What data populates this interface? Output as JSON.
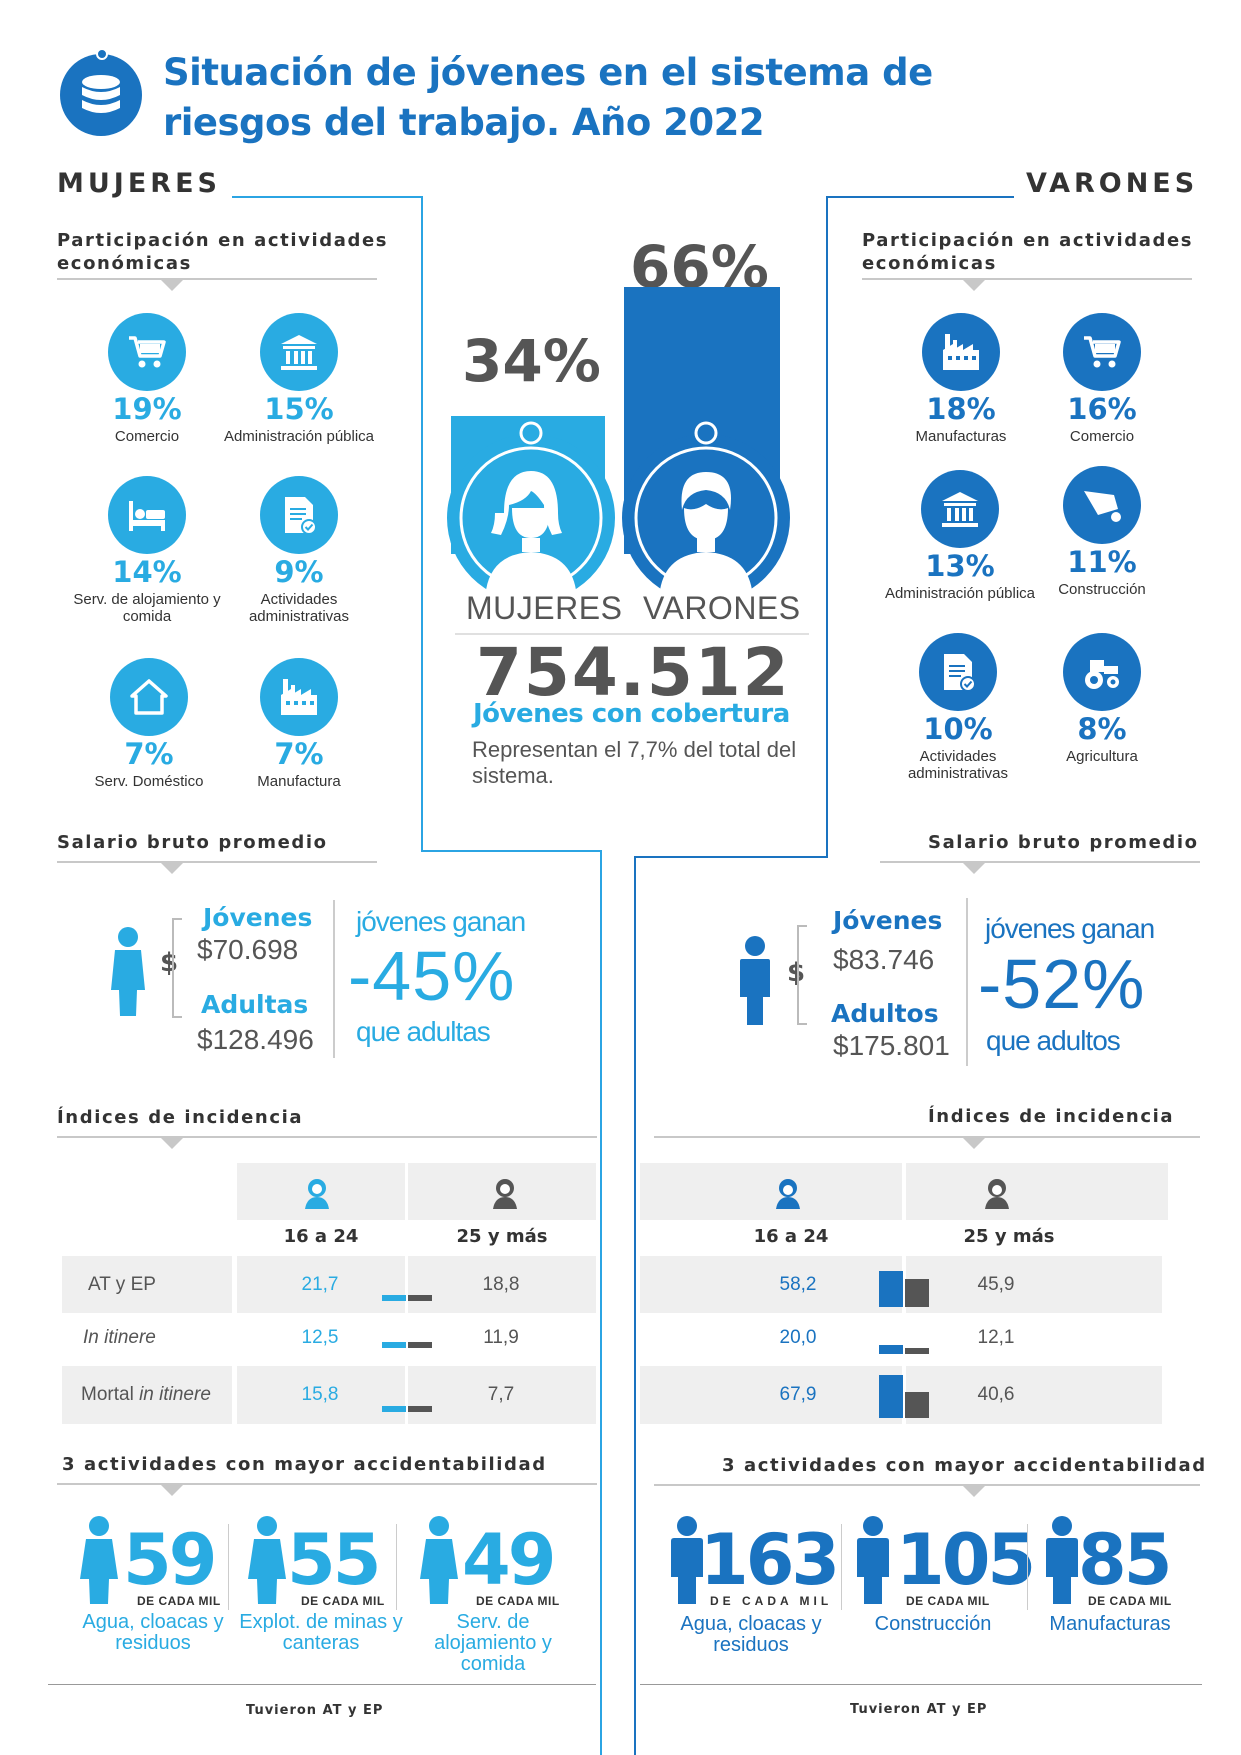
{
  "title": "Situación de jóvenes en el sistema de riesgos del trabajo. Año 2022",
  "colors": {
    "light_blue": "#29abe2",
    "dark_blue": "#1a73c0",
    "gray": "#555555"
  },
  "mujeres": {
    "header": "MUJERES",
    "participacion_title": "Participación en actividades económicas",
    "activities": [
      {
        "icon": "shopping-cart-icon",
        "pct": "19%",
        "label": "Comercio"
      },
      {
        "icon": "government-building-icon",
        "pct": "15%",
        "label": "Administración pública"
      },
      {
        "icon": "bed-icon",
        "pct": "14%",
        "label": "Serv. de alojamiento y comida"
      },
      {
        "icon": "document-check-icon",
        "pct": "9%",
        "label": "Actividades administrativas"
      },
      {
        "icon": "house-icon",
        "pct": "7%",
        "label": "Serv. Doméstico"
      },
      {
        "icon": "factory-icon",
        "pct": "7%",
        "label": "Manufactura"
      }
    ],
    "salario_title": "Salario bruto promedio",
    "salario": {
      "jovenes_label": "Jóvenes",
      "jovenes_value": "$70.698",
      "adultos_label": "Adultas",
      "adultos_value": "$128.496",
      "ganan": "jóvenes ganan",
      "diff": "-45%",
      "que": "que adultas"
    },
    "incidencia_title": "Índices de incidencia",
    "incidencia": {
      "col1": "16 a 24",
      "col2": "25 y más",
      "rows": [
        {
          "label": "AT y EP",
          "label_italic": "",
          "v1": "21,7",
          "v2": "18,8",
          "n1": 21.7,
          "n2": 18.8
        },
        {
          "label": "",
          "label_italic": "In itinere",
          "v1": "12,5",
          "v2": "11,9",
          "n1": 12.5,
          "n2": 11.9
        },
        {
          "label": "Mortal ",
          "label_italic": "in itinere",
          "v1": "15,8",
          "v2": "7,7",
          "n1": 15.8,
          "n2": 7.7
        }
      ]
    },
    "accid_title": "3 actividades con mayor accidentabilidad",
    "accid": [
      {
        "value": "59",
        "unit": "DE CADA MIL",
        "label": "Agua, cloacas y residuos"
      },
      {
        "value": "55",
        "unit": "DE CADA MIL",
        "label": "Explot. de minas y canteras"
      },
      {
        "value": "49",
        "unit": "DE CADA MIL",
        "label": "Serv. de alojamiento y comida"
      }
    ],
    "footer": "Tuvieron AT y EP"
  },
  "varones": {
    "header": "VARONES",
    "participacion_title": "Participación en actividades económicas",
    "activities": [
      {
        "icon": "factory-icon",
        "pct": "18%",
        "label": "Manufacturas"
      },
      {
        "icon": "shopping-cart-icon",
        "pct": "16%",
        "label": "Comercio"
      },
      {
        "icon": "government-building-icon",
        "pct": "13%",
        "label": "Administración pública"
      },
      {
        "icon": "wheelbarrow-icon",
        "pct": "11%",
        "label": "Construcción"
      },
      {
        "icon": "document-check-icon",
        "pct": "10%",
        "label": "Actividades administrativas"
      },
      {
        "icon": "tractor-icon",
        "pct": "8%",
        "label": "Agricultura"
      }
    ],
    "salario_title": "Salario bruto promedio",
    "salario": {
      "jovenes_label": "Jóvenes",
      "jovenes_value": "$83.746",
      "adultos_label": "Adultos",
      "adultos_value": "$175.801",
      "ganan": "jóvenes ganan",
      "diff": "-52%",
      "que": "que adultos"
    },
    "incidencia_title": "Índices de incidencia",
    "incidencia": {
      "col1": "16 a 24",
      "col2": "25 y más",
      "rows": [
        {
          "v1": "58,2",
          "v2": "45,9",
          "n1": 58.2,
          "n2": 45.9
        },
        {
          "v1": "20,0",
          "v2": "12,1",
          "n1": 20.0,
          "n2": 12.1
        },
        {
          "v1": "67,9",
          "v2": "40,6",
          "n1": 67.9,
          "n2": 40.6
        }
      ]
    },
    "accid_title": "3 actividades con mayor accidentabilidad",
    "accid": [
      {
        "value": "163",
        "unit": "DE CADA MIL",
        "label": "Agua, cloacas y residuos"
      },
      {
        "value": "105",
        "unit": "DE CADA MIL",
        "label": "Construcción"
      },
      {
        "value": "85",
        "unit": "DE CADA MIL",
        "label": "Manufacturas"
      }
    ],
    "footer": "Tuvieron AT y EP"
  },
  "center": {
    "mujeres_pct": "34%",
    "varones_pct": "66%",
    "mujeres_share": 34,
    "varones_share": 66,
    "mujeres_label": "MUJERES",
    "varones_label": "VARONES",
    "total": "754.512",
    "cobertura": "Jóvenes con cobertura",
    "representan": "Representan el 7,7% del total del sistema.",
    "currency_symbol": "$"
  }
}
